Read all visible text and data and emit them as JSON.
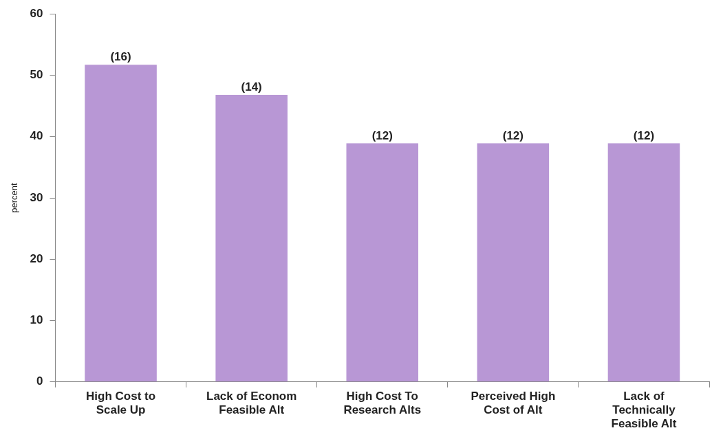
{
  "chart_data": {
    "type": "bar",
    "ylabel": "percent",
    "categories": [
      "High Cost to Scale Up",
      "Lack of Econom Feasible Alt",
      "High Cost To Research Alts",
      "Perceived High Cost of Alt",
      "Lack of Technically Feasible Alt"
    ],
    "values": [
      51.7,
      46.8,
      38.9,
      38.9,
      38.9
    ],
    "color": "#b897d5",
    "ylim": [
      0,
      60
    ],
    "yticks": [
      0,
      10,
      20,
      30,
      40,
      50,
      60
    ],
    "grid": false,
    "legend": false,
    "annotations": [
      {
        "text": "(16)",
        "x": "High Cost to Scale Up",
        "y": 51.7
      },
      {
        "text": "(14)",
        "x": "Lack of Econom Feasible Alt",
        "y": 46.8
      },
      {
        "text": "(12)",
        "x": "High Cost To Research Alts",
        "y": 38.9
      },
      {
        "text": "(12)",
        "x": "Perceived High Cost of Alt",
        "y": 38.9
      },
      {
        "text": "(12)",
        "x": "Lack of Technically Feasible Alt",
        "y": 38.9
      }
    ]
  }
}
